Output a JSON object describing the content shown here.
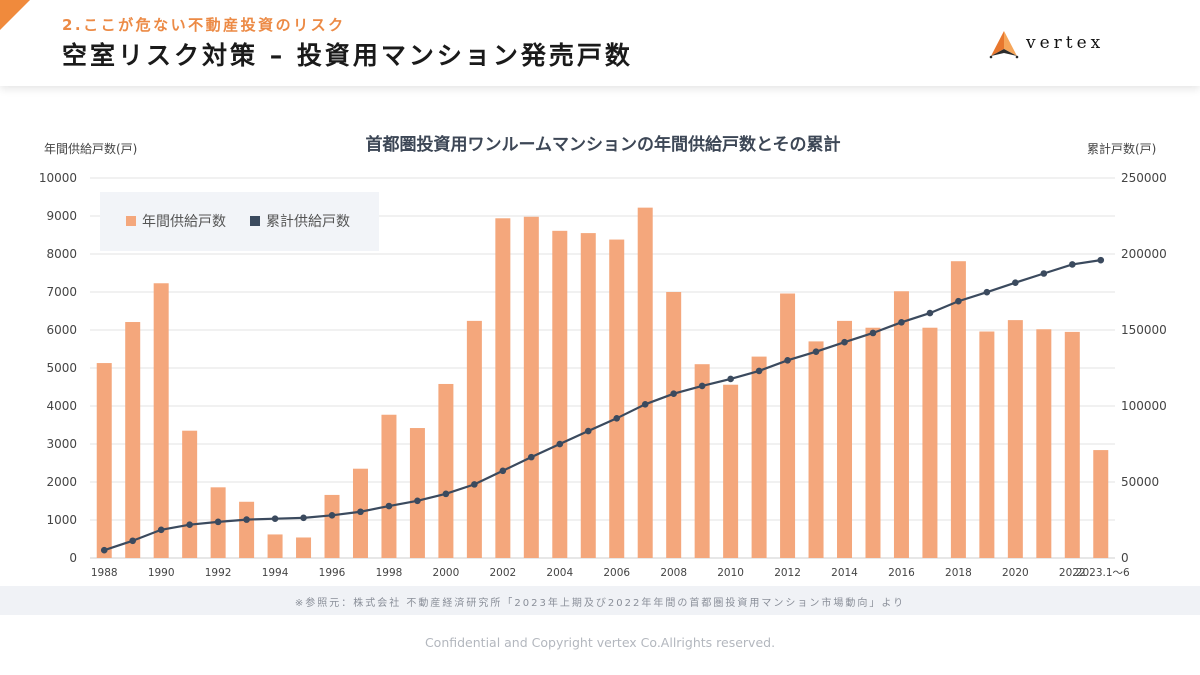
{
  "header": {
    "subtitle": "2.ここが危ない不動産投資のリスク",
    "title": "空室リスク対策 – 投資用マンション発売戸数",
    "logo_text": "vertex"
  },
  "colors": {
    "bar": "#f4a77c",
    "line": "#3b4a5e",
    "accent": "#f08a3c"
  },
  "chart_data": {
    "type": "bar+line",
    "title": "首都圏投資用ワンルームマンションの年間供給戸数とその累計",
    "ylabel_left": "年間供給戸数(戸)",
    "ylabel_right": "累計戸数(戸)",
    "ylim_left": [
      0,
      10000
    ],
    "ylim_right": [
      0,
      250000
    ],
    "yticks_left": [
      "0",
      "1000",
      "2000",
      "3000",
      "4000",
      "5000",
      "6000",
      "7000",
      "8000",
      "9000",
      "10000"
    ],
    "yticks_right": [
      "0",
      "50000",
      "100000",
      "150000",
      "200000",
      "250000"
    ],
    "categories": [
      "1988",
      "1989",
      "1990",
      "1991",
      "1992",
      "1993",
      "1994",
      "1995",
      "1996",
      "1997",
      "1998",
      "1999",
      "2000",
      "2001",
      "2002",
      "2003",
      "2004",
      "2005",
      "2006",
      "2007",
      "2008",
      "2009",
      "2010",
      "2011",
      "2012",
      "2013",
      "2014",
      "2015",
      "2016",
      "2017",
      "2018",
      "2019",
      "2020",
      "2021",
      "2022",
      "2023.1～6"
    ],
    "xtick_labels": [
      "1988",
      "",
      "1990",
      "",
      "1992",
      "",
      "1994",
      "",
      "1996",
      "",
      "1998",
      "",
      "2000",
      "",
      "2002",
      "",
      "2004",
      "",
      "2006",
      "",
      "2008",
      "",
      "2010",
      "",
      "2012",
      "",
      "2014",
      "",
      "2016",
      "",
      "2018",
      "",
      "2020",
      "",
      "2022",
      "2023.1～6"
    ],
    "legend": [
      "年間供給戸数",
      "累計供給戸数"
    ],
    "legend_position": "top-left",
    "series": [
      {
        "name": "年間供給戸数",
        "type": "bar",
        "axis": "left",
        "values": [
          5130,
          6210,
          7230,
          3350,
          1860,
          1480,
          620,
          540,
          1660,
          2350,
          3770,
          3420,
          4580,
          6240,
          8940,
          8980,
          8610,
          8550,
          8380,
          9220,
          7000,
          5100,
          4560,
          5300,
          6960,
          5700,
          6240,
          6060,
          7020,
          6060,
          7810,
          5960,
          6260,
          6020,
          5950,
          2840
        ]
      },
      {
        "name": "累計供給戸数",
        "type": "line",
        "axis": "right",
        "values": [
          5130,
          11340,
          18570,
          21920,
          23780,
          25260,
          25880,
          26420,
          28080,
          30430,
          34200,
          37620,
          42200,
          48440,
          57380,
          66360,
          74970,
          83520,
          91900,
          101120,
          108120,
          113220,
          117780,
          123080,
          130040,
          135740,
          141980,
          148040,
          155060,
          161120,
          168930,
          174890,
          181150,
          187170,
          193120,
          195960
        ]
      }
    ]
  },
  "source": "※参照元：株式会社 不動産経済研究所「2023年上期及び2022年年間の首都圏投資用マンション市場動向」より",
  "footer": {
    "copyright": "Confidential and Copyright vertex Co.Allrights reserved."
  }
}
